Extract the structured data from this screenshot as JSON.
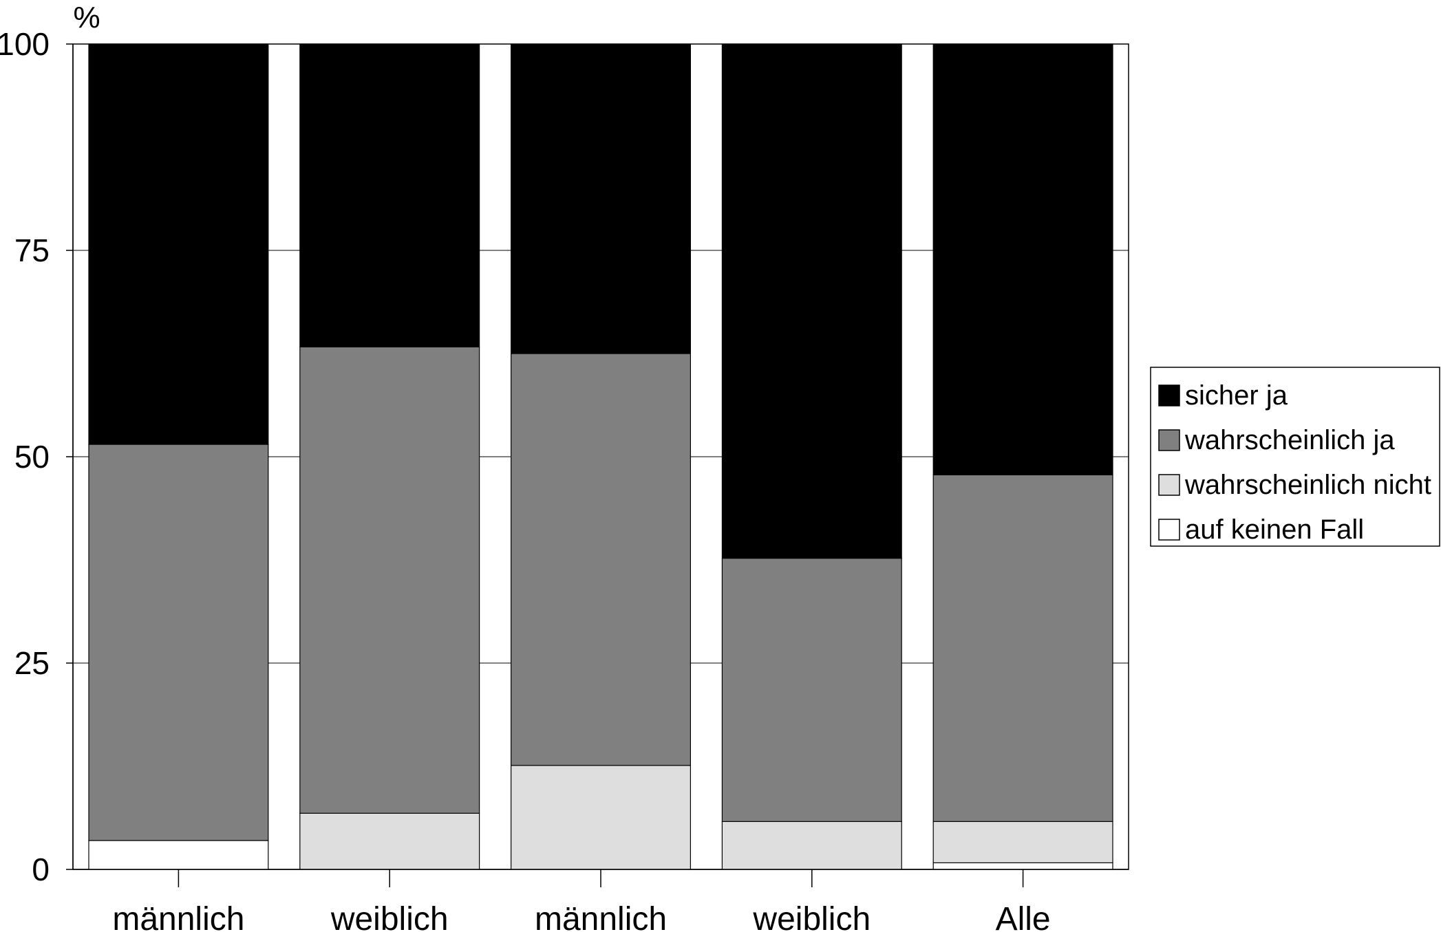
{
  "chart_data": {
    "type": "bar",
    "stacked": true,
    "unit_label": "%",
    "ylim": [
      0,
      100
    ],
    "yticks": [
      "0",
      "25",
      "50",
      "75",
      "100"
    ],
    "grid": true,
    "legend_position": "right",
    "categories": [
      "männlich",
      "weiblich",
      "männlich",
      "weiblich",
      "Alle"
    ],
    "series": [
      {
        "name": "auf keinen Fall",
        "color": "#ffffff",
        "values": [
          3.5,
          0,
          0,
          0,
          0.8
        ]
      },
      {
        "name": "wahrscheinlich nicht",
        "color": "#dedede",
        "values": [
          0,
          6.8,
          12.6,
          5.8,
          5.0
        ]
      },
      {
        "name": "wahrscheinlich ja",
        "color": "#808080",
        "values": [
          48.0,
          56.5,
          49.9,
          31.9,
          42.0
        ]
      },
      {
        "name": "sicher ja",
        "color": "#000000",
        "values": [
          48.5,
          36.7,
          37.5,
          62.3,
          52.2
        ]
      }
    ],
    "legend_order": [
      "sicher ja",
      "wahrscheinlich ja",
      "wahrscheinlich nicht",
      "auf keinen Fall"
    ]
  }
}
